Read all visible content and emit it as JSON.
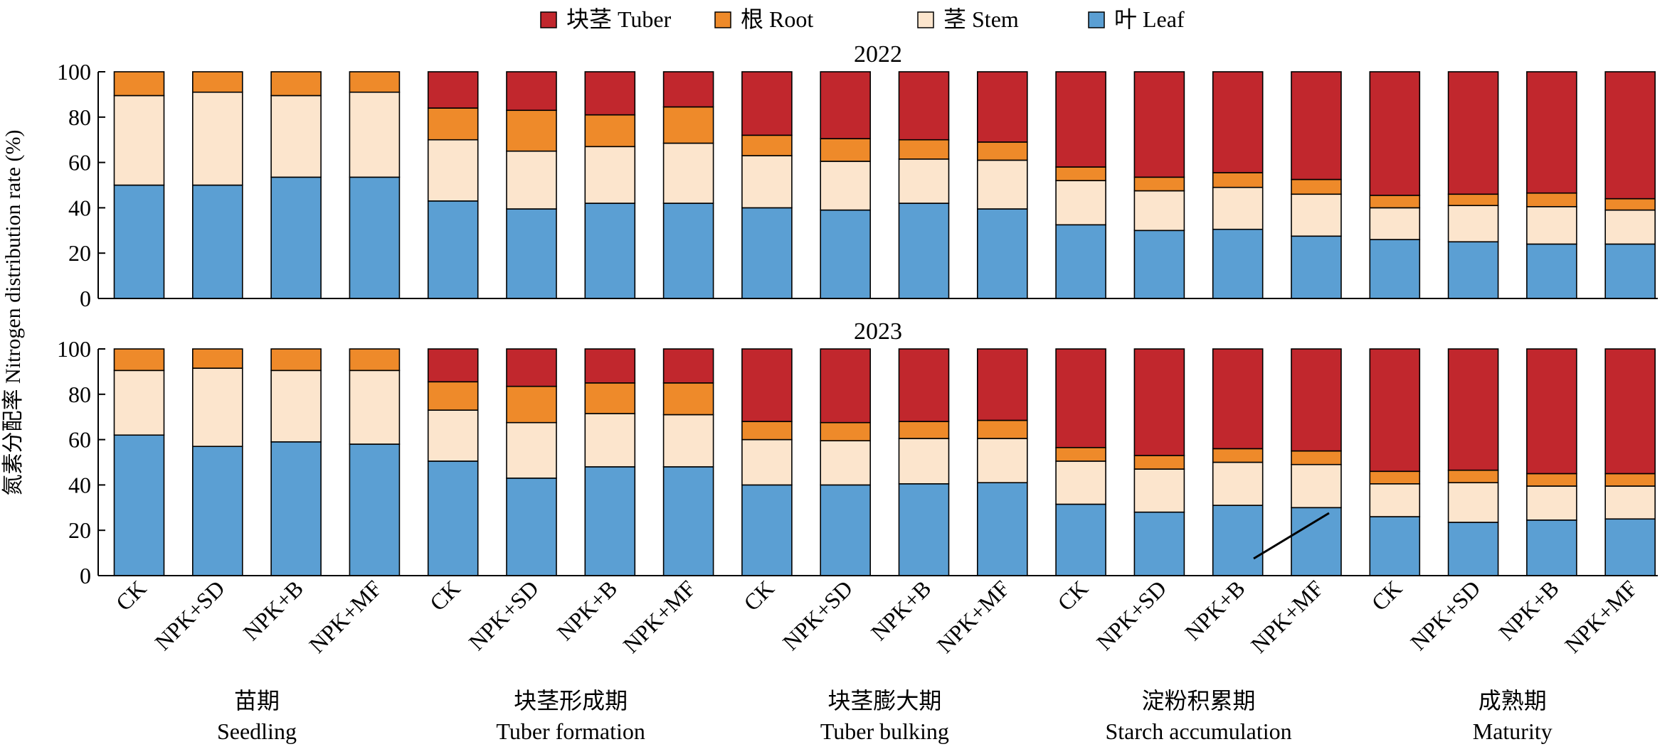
{
  "legend": {
    "items": [
      {
        "label": "块茎 Tuber",
        "color": "#c1272d"
      },
      {
        "label": "根 Root",
        "color": "#ee8a2a"
      },
      {
        "label": "茎 Stem",
        "color": "#fce5cd"
      },
      {
        "label": "叶 Leaf",
        "color": "#5b9fd3"
      }
    ]
  },
  "ylabel": "氮素分配率 Nitrogen distribution rate (%)",
  "chart_data": [
    {
      "type": "bar",
      "stacked": true,
      "title": "2022",
      "ylim": [
        0,
        100
      ],
      "yticks": [
        0,
        20,
        40,
        60,
        80,
        100
      ],
      "categories": [
        "CK",
        "NPK+SD",
        "NPK+B",
        "NPK+MF",
        "CK",
        "NPK+SD",
        "NPK+B",
        "NPK+MF",
        "CK",
        "NPK+SD",
        "NPK+B",
        "NPK+MF",
        "CK",
        "NPK+SD",
        "NPK+B",
        "NPK+MF",
        "CK",
        "NPK+SD",
        "NPK+B",
        "NPK+MF"
      ],
      "series": [
        {
          "name": "叶 Leaf",
          "values": [
            50,
            50,
            53.5,
            53.5,
            43,
            39.5,
            42,
            42,
            40,
            39,
            42,
            39.5,
            32.5,
            30,
            30.5,
            27.5,
            26,
            25,
            24,
            24
          ]
        },
        {
          "name": "茎 Stem",
          "values": [
            39.5,
            41,
            36,
            37.5,
            27,
            25.5,
            25,
            26.5,
            23,
            21.5,
            19.5,
            21.5,
            19.5,
            17.5,
            18.5,
            18.5,
            14,
            16,
            16.5,
            15
          ]
        },
        {
          "name": "根 Root",
          "values": [
            10.5,
            9,
            10.5,
            9,
            14,
            18,
            14,
            16,
            9,
            10,
            8.5,
            8,
            6,
            6,
            6.5,
            6.5,
            5.5,
            5,
            6,
            5
          ]
        },
        {
          "name": "块茎 Tuber",
          "values": [
            0,
            0,
            0,
            0,
            16,
            17,
            19,
            15.5,
            28,
            29.5,
            30,
            31,
            42,
            46.5,
            44.5,
            47.5,
            54.5,
            54,
            53.5,
            56
          ]
        }
      ]
    },
    {
      "type": "bar",
      "stacked": true,
      "title": "2023",
      "ylim": [
        0,
        100
      ],
      "yticks": [
        0,
        20,
        40,
        60,
        80,
        100
      ],
      "categories": [
        "CK",
        "NPK+SD",
        "NPK+B",
        "NPK+MF",
        "CK",
        "NPK+SD",
        "NPK+B",
        "NPK+MF",
        "CK",
        "NPK+SD",
        "NPK+B",
        "NPK+MF",
        "CK",
        "NPK+SD",
        "NPK+B",
        "NPK+MF",
        "CK",
        "NPK+SD",
        "NPK+B",
        "NPK+MF"
      ],
      "series": [
        {
          "name": "叶 Leaf",
          "values": [
            62,
            57,
            59,
            58,
            50.5,
            43,
            48,
            48,
            40,
            40,
            40.5,
            41,
            31.5,
            28,
            31,
            30,
            26,
            23.5,
            24.5,
            25
          ]
        },
        {
          "name": "茎 Stem",
          "values": [
            28.5,
            34.5,
            31.5,
            32.5,
            22.5,
            24.5,
            23.5,
            23,
            20,
            19.5,
            20,
            19.5,
            19,
            19,
            19,
            19,
            14.5,
            17.5,
            15,
            14.5
          ]
        },
        {
          "name": "根 Root",
          "values": [
            9.5,
            8.5,
            9.5,
            9.5,
            12.5,
            16,
            13.5,
            14,
            8,
            8,
            7.5,
            8,
            6,
            6,
            6,
            6,
            5.5,
            5.5,
            5.5,
            5.5
          ]
        },
        {
          "name": "块茎 Tuber",
          "values": [
            0,
            0,
            0,
            0,
            14.5,
            16.5,
            15,
            15,
            32,
            32.5,
            32,
            31.5,
            43.5,
            47,
            44,
            45,
            54,
            53.5,
            55,
            55
          ]
        }
      ]
    }
  ],
  "groups": [
    {
      "zh": "苗期",
      "en": "Seedling"
    },
    {
      "zh": "块茎形成期",
      "en": "Tuber formation"
    },
    {
      "zh": "块茎膨大期",
      "en": "Tuber bulking"
    },
    {
      "zh": "淀粉积累期",
      "en": "Starch accumulation"
    },
    {
      "zh": "成熟期",
      "en": "Maturity"
    }
  ]
}
